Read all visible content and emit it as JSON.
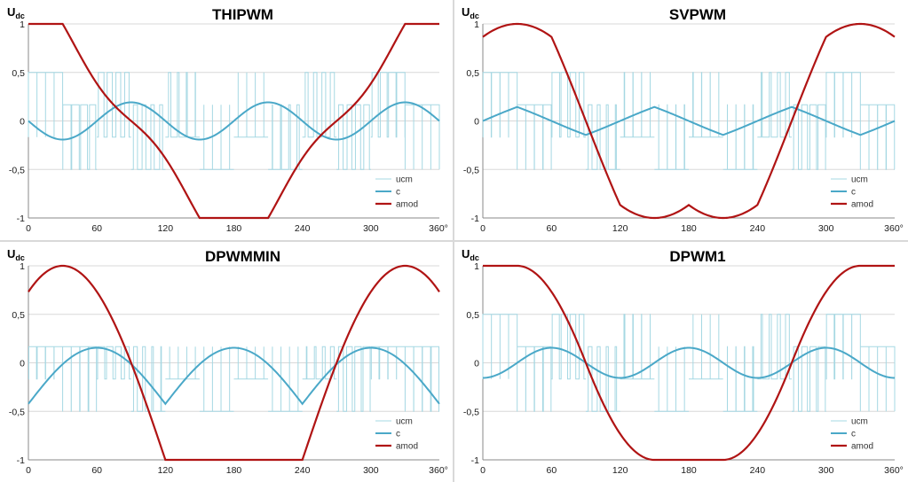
{
  "colors": {
    "ucm": "#a6d8e3",
    "c": "#4aa8c8",
    "amod": "#b01414",
    "grid": "#d8d8d8",
    "axis": "#888888"
  },
  "chart_data": [
    {
      "type": "line",
      "title": "THIPWM",
      "ylabel": "U",
      "ylabel_sub": "dc",
      "xlim": [
        0,
        360
      ],
      "ylim": [
        -1,
        1
      ],
      "x_ticks": [
        "0",
        "60",
        "120",
        "180",
        "240",
        "300",
        "360°"
      ],
      "y_ticks": [
        "1",
        "0,5",
        "0",
        "-0,5",
        "-1"
      ],
      "grid": true,
      "legend_position": "bottom-right",
      "series": [
        {
          "name": "ucm",
          "kind": "pwm",
          "levels": [
            0.5,
            -0.5
          ],
          "inner_levels": [
            0.167,
            -0.167
          ],
          "carrier_periods": 48
        },
        {
          "name": "c",
          "kind": "zero_sequence",
          "model": "thipwm",
          "x_step": 1,
          "peak": 0.192
        },
        {
          "name": "amod",
          "kind": "modulating",
          "model": "thipwm",
          "x_step": 1,
          "max": 1.0,
          "min": -1.0
        }
      ]
    },
    {
      "type": "line",
      "title": "SVPWM",
      "ylabel": "U",
      "ylabel_sub": "dc",
      "xlim": [
        0,
        360
      ],
      "ylim": [
        -1,
        1
      ],
      "x_ticks": [
        "0",
        "60",
        "120",
        "180",
        "240",
        "300",
        "360°"
      ],
      "y_ticks": [
        "1",
        "0,5",
        "0",
        "-0,5",
        "-1"
      ],
      "grid": true,
      "legend_position": "bottom-right",
      "series": [
        {
          "name": "ucm",
          "kind": "pwm",
          "levels": [
            0.5,
            -0.5
          ],
          "inner_levels": [
            0.167,
            -0.167
          ],
          "carrier_periods": 48
        },
        {
          "name": "c",
          "kind": "zero_sequence",
          "model": "svpwm",
          "x_step": 1,
          "peak": 0.289
        },
        {
          "name": "amod",
          "kind": "modulating",
          "model": "svpwm",
          "x_step": 1,
          "max": 1.0,
          "min": -1.0
        }
      ]
    },
    {
      "type": "line",
      "title": "DPWMMIN",
      "ylabel": "U",
      "ylabel_sub": "dc",
      "xlim": [
        0,
        360
      ],
      "ylim": [
        -1,
        1
      ],
      "x_ticks": [
        "0",
        "60",
        "120",
        "180",
        "240",
        "300",
        "360°"
      ],
      "y_ticks": [
        "1",
        "0,5",
        "0",
        "-0,5",
        "-1"
      ],
      "grid": true,
      "legend_position": "bottom-right",
      "series": [
        {
          "name": "ucm",
          "kind": "pwm",
          "levels": [
            0.167,
            -0.5
          ],
          "inner_levels": [
            0.167,
            -0.167
          ],
          "carrier_periods": 48
        },
        {
          "name": "c",
          "kind": "zero_sequence",
          "model": "dpwmmin",
          "x_step": 1,
          "peak": 0.155,
          "trough": -0.423
        },
        {
          "name": "amod",
          "kind": "modulating",
          "model": "dpwmmin",
          "x_step": 1,
          "max": 1.0,
          "min": -1.0
        }
      ]
    },
    {
      "type": "line",
      "title": "DPWM1",
      "ylabel": "U",
      "ylabel_sub": "dc",
      "xlim": [
        0,
        360
      ],
      "ylim": [
        -1,
        1
      ],
      "x_ticks": [
        "0",
        "60",
        "120",
        "180",
        "240",
        "300",
        "360°"
      ],
      "y_ticks": [
        "1",
        "0,5",
        "0",
        "-0,5",
        "-1"
      ],
      "grid": true,
      "legend_position": "bottom-right",
      "series": [
        {
          "name": "ucm",
          "kind": "pwm",
          "levels": [
            0.5,
            -0.5
          ],
          "inner_levels": [
            0.167,
            -0.167
          ],
          "carrier_periods": 48
        },
        {
          "name": "c",
          "kind": "zero_sequence",
          "model": "dpwm1",
          "x_step": 1,
          "peak": 0.155
        },
        {
          "name": "amod",
          "kind": "modulating",
          "model": "dpwm1",
          "x_step": 1,
          "max": 1.0,
          "min": -1.0
        }
      ]
    }
  ]
}
